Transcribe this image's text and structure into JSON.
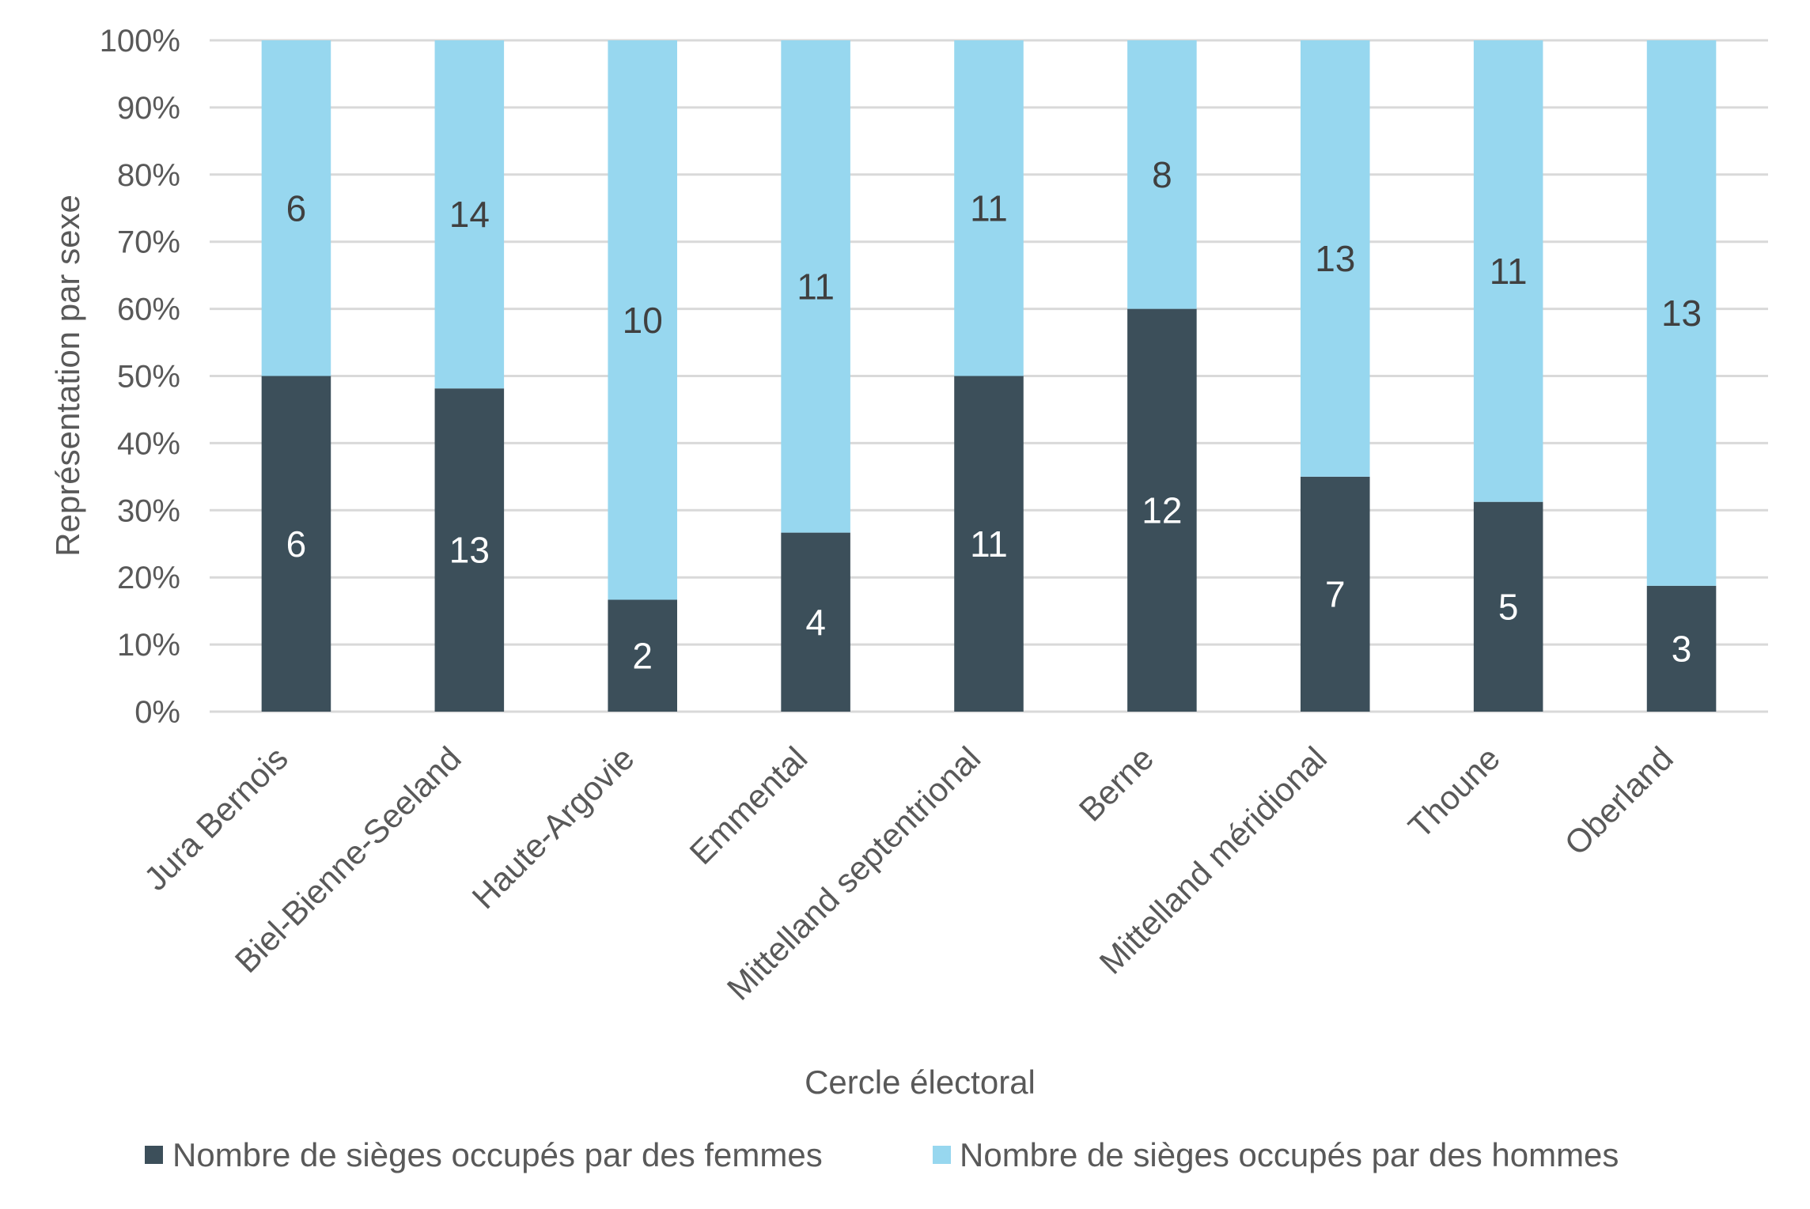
{
  "chart_data": {
    "type": "bar",
    "stacked": "percent",
    "title": "",
    "xlabel": "Cercle électoral",
    "ylabel": "Représentation par sexe",
    "ylim": [
      0,
      100
    ],
    "yticks": [
      "0%",
      "10%",
      "20%",
      "30%",
      "40%",
      "50%",
      "60%",
      "70%",
      "80%",
      "90%",
      "100%"
    ],
    "grid": true,
    "legend_position": "bottom",
    "categories": [
      "Jura Bernois",
      "Biel-Bienne-Seeland",
      "Haute-Argovie",
      "Emmental",
      "Mittelland septentrional",
      "Berne",
      "Mittelland méridional",
      "Thoune",
      "Oberland"
    ],
    "series": [
      {
        "name": "Nombre de sièges occupés par des femmes",
        "color": "#3C4F5A",
        "label_color": "#FFFFFF",
        "values": [
          6,
          13,
          2,
          4,
          11,
          12,
          7,
          5,
          3
        ]
      },
      {
        "name": "Nombre de sièges occupés par des hommes",
        "color": "#97D7EF",
        "label_color": "#404040",
        "values": [
          6,
          14,
          10,
          11,
          11,
          8,
          13,
          11,
          13
        ]
      }
    ]
  }
}
